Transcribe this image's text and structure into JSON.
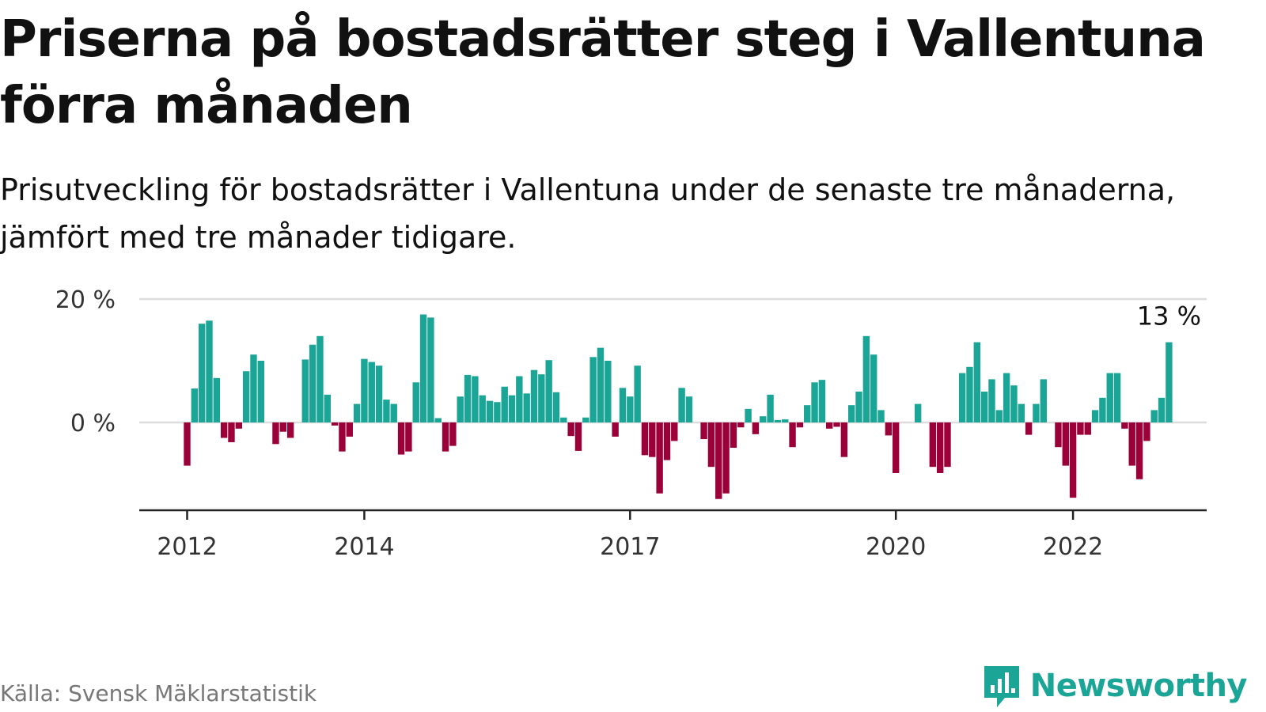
{
  "title": "Priserna på bostadsrätter steg i Vallentuna förra månaden",
  "subtitle": "Prisutveckling för bostadsrätter i Vallentuna under de senaste tre månaderna, jämfört med tre månader tidigare.",
  "source": "Källa: Svensk Mäklarstatistik",
  "brand": {
    "name": "Newsworthy",
    "icon": "newsworthy-logo-icon"
  },
  "colors": {
    "positive": "#1aa596",
    "negative": "#9b0038",
    "grid": "#dddddd",
    "axis": "#222222",
    "text": "#333333"
  },
  "chart_data": {
    "type": "bar",
    "start": "2012-01",
    "frequency": "monthly",
    "ylim": [
      -14,
      20
    ],
    "yticks": [
      0,
      20
    ],
    "ytick_labels": [
      "0 %",
      "20 %"
    ],
    "xticks": [
      "2012",
      "2014",
      "2017",
      "2020",
      "2022"
    ],
    "annotation": {
      "label": "13 %",
      "month": "2023-02",
      "value": 13
    },
    "grid": true,
    "values": [
      -7,
      5.5,
      16,
      16.5,
      7.2,
      -2.5,
      -3.2,
      -1,
      8.3,
      11,
      10,
      0,
      -3.5,
      -1.5,
      -2.5,
      0,
      10.2,
      12.6,
      14,
      4.5,
      -0.5,
      -4.7,
      -2.3,
      3,
      10.3,
      9.8,
      9.2,
      3.7,
      3,
      -5.2,
      -4.7,
      6.5,
      17.5,
      17,
      0.7,
      -4.7,
      -3.8,
      4.2,
      7.7,
      7.5,
      4.4,
      3.5,
      3.3,
      5.8,
      4.4,
      7.5,
      4.7,
      8.5,
      7.8,
      10.1,
      4.9,
      0.8,
      -2.2,
      -4.6,
      0.8,
      10.6,
      12.1,
      10,
      -2.3,
      5.6,
      4.2,
      9.2,
      -5.3,
      -5.6,
      -11.5,
      -6.1,
      -3,
      5.6,
      4.2,
      0,
      -2.7,
      -7.2,
      -12.4,
      -11.5,
      -4.1,
      -0.8,
      2.2,
      -1.9,
      1,
      4.5,
      0.4,
      0.5,
      -4,
      -0.8,
      2.8,
      6.5,
      6.9,
      -1,
      -0.7,
      -5.6,
      2.8,
      5,
      14,
      11,
      2,
      -2.1,
      -8.2,
      0,
      0,
      3,
      0,
      -7.2,
      -8.2,
      -7.2,
      0,
      8,
      9,
      13,
      5,
      7,
      2,
      8,
      6,
      3,
      -2,
      3,
      7,
      0,
      -4,
      -7,
      -12.2,
      -2,
      -2,
      2,
      4,
      8,
      8,
      -1,
      -7,
      -9.2,
      -3,
      2,
      4,
      13
    ]
  }
}
